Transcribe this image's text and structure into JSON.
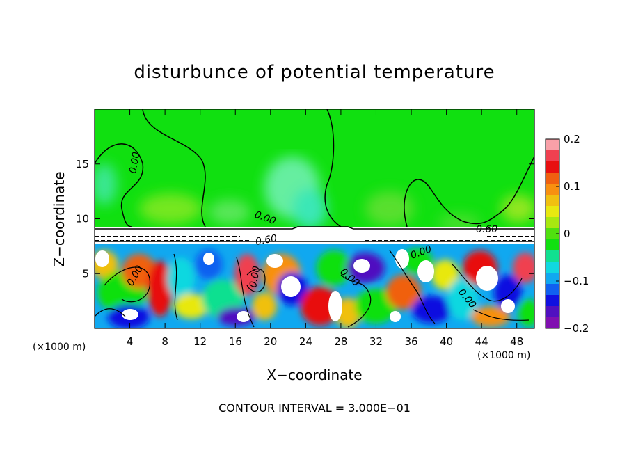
{
  "chart_data": {
    "type": "heatmap",
    "title": "disturbunce of potential temperature",
    "xlabel": "X−coordinate",
    "ylabel": "Z−coordinate",
    "x_unit": "(×1000 m)",
    "x_unit_secondary": "(×1000 m)",
    "xlim": [
      0,
      50
    ],
    "ylim": [
      0,
      20
    ],
    "x_ticks": [
      4,
      8,
      12,
      16,
      20,
      24,
      28,
      32,
      36,
      40,
      44,
      48
    ],
    "y_ticks": [
      5,
      10,
      15
    ],
    "colorbar": {
      "range": [
        -0.2,
        0.2
      ],
      "ticks": [
        "0.2",
        "0.1",
        "0",
        "−0.1",
        "−0.2"
      ],
      "tick_values": [
        0.2,
        0.1,
        0,
        -0.1,
        -0.2
      ],
      "colors": [
        "#f8a0a8",
        "#f04050",
        "#e81010",
        "#f06010",
        "#f89010",
        "#f0c010",
        "#e8e810",
        "#a8e810",
        "#50e010",
        "#10e010",
        "#10e090",
        "#10d8e0",
        "#10a8f0",
        "#1060f0",
        "#1010e0",
        "#5010c0",
        "#8010b0"
      ]
    },
    "contour_interval_text": "CONTOUR INTERVAL = 3.000E−01",
    "contour_labels": [
      "0.00",
      "0.00",
      "0.60",
      "0.00",
      "0.00",
      "0.00",
      "0.60",
      "0.00",
      "0.00",
      "0.00",
      "0.00"
    ],
    "colors": {
      "background_field": "#10e010",
      "blank_band": "#ffffff"
    }
  }
}
